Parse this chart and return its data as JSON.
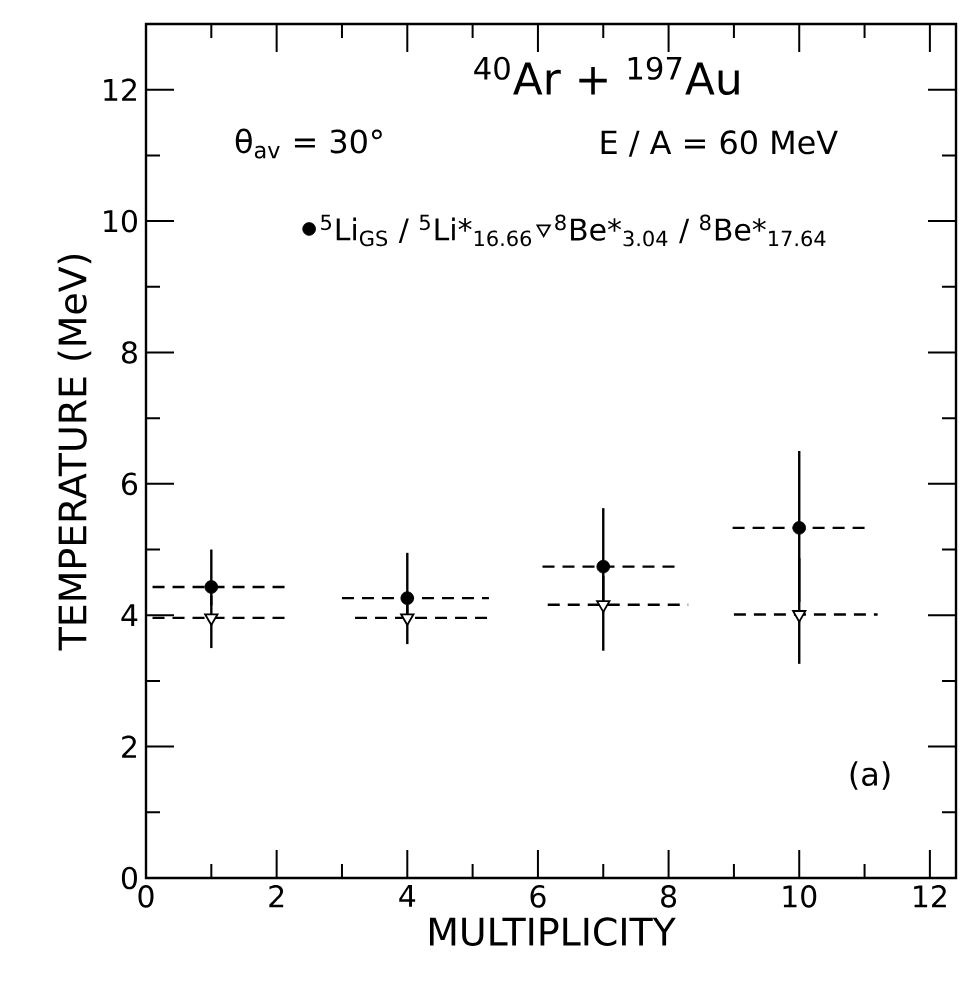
{
  "chart_data": {
    "type": "scatter",
    "title": "$^{40}$Ar + $^{197}$Au",
    "xlabel": "MULTIPLICITY",
    "ylabel": "TEMPERATURE (MeV)",
    "annotations": [
      "θ$_{av}$ = 30°",
      "E / A = 60 MeV",
      "(a)"
    ],
    "xlim": [
      0,
      12.4
    ],
    "ylim": [
      0,
      13
    ],
    "xticks": [
      0,
      2,
      4,
      6,
      8,
      10,
      12
    ],
    "yticks": [
      0,
      2,
      4,
      6,
      8,
      10,
      12
    ],
    "legend": "top",
    "series": [
      {
        "name": "$^{5}$Li$_{GS}$ / $^{5}$Li*$_{16.66}$",
        "color": "#000000",
        "marker": "circle",
        "x": [
          1,
          4,
          7,
          10
        ],
        "values": [
          4.43,
          4.26,
          4.74,
          5.33
        ],
        "errors": [
          [
            4.15,
            5.0
          ],
          [
            4.0,
            4.95
          ],
          [
            4.2,
            5.63
          ],
          [
            4.2,
            6.5
          ]
        ],
        "xerrors": [
          [
            0.1,
            2.2
          ],
          [
            3.0,
            5.25
          ],
          [
            6.07,
            8.17
          ],
          [
            8.98,
            11.0
          ]
        ]
      },
      {
        "name": "$^{8}$Be*$_{3.04}$ / $^{8}$Be*$_{17.64}$",
        "color": "#000000",
        "marker": "triangle",
        "x": [
          1,
          4,
          7,
          10
        ],
        "values": [
          3.96,
          3.96,
          4.16,
          4.01
        ],
        "errors": [
          [
            3.5,
            4.3
          ],
          [
            3.56,
            4.25
          ],
          [
            3.46,
            4.6
          ],
          [
            3.26,
            4.87
          ]
        ],
        "xerrors": [
          [
            0.1,
            2.2
          ],
          [
            3.2,
            5.3
          ],
          [
            6.15,
            8.3
          ],
          [
            9.0,
            11.2
          ]
        ]
      }
    ]
  }
}
